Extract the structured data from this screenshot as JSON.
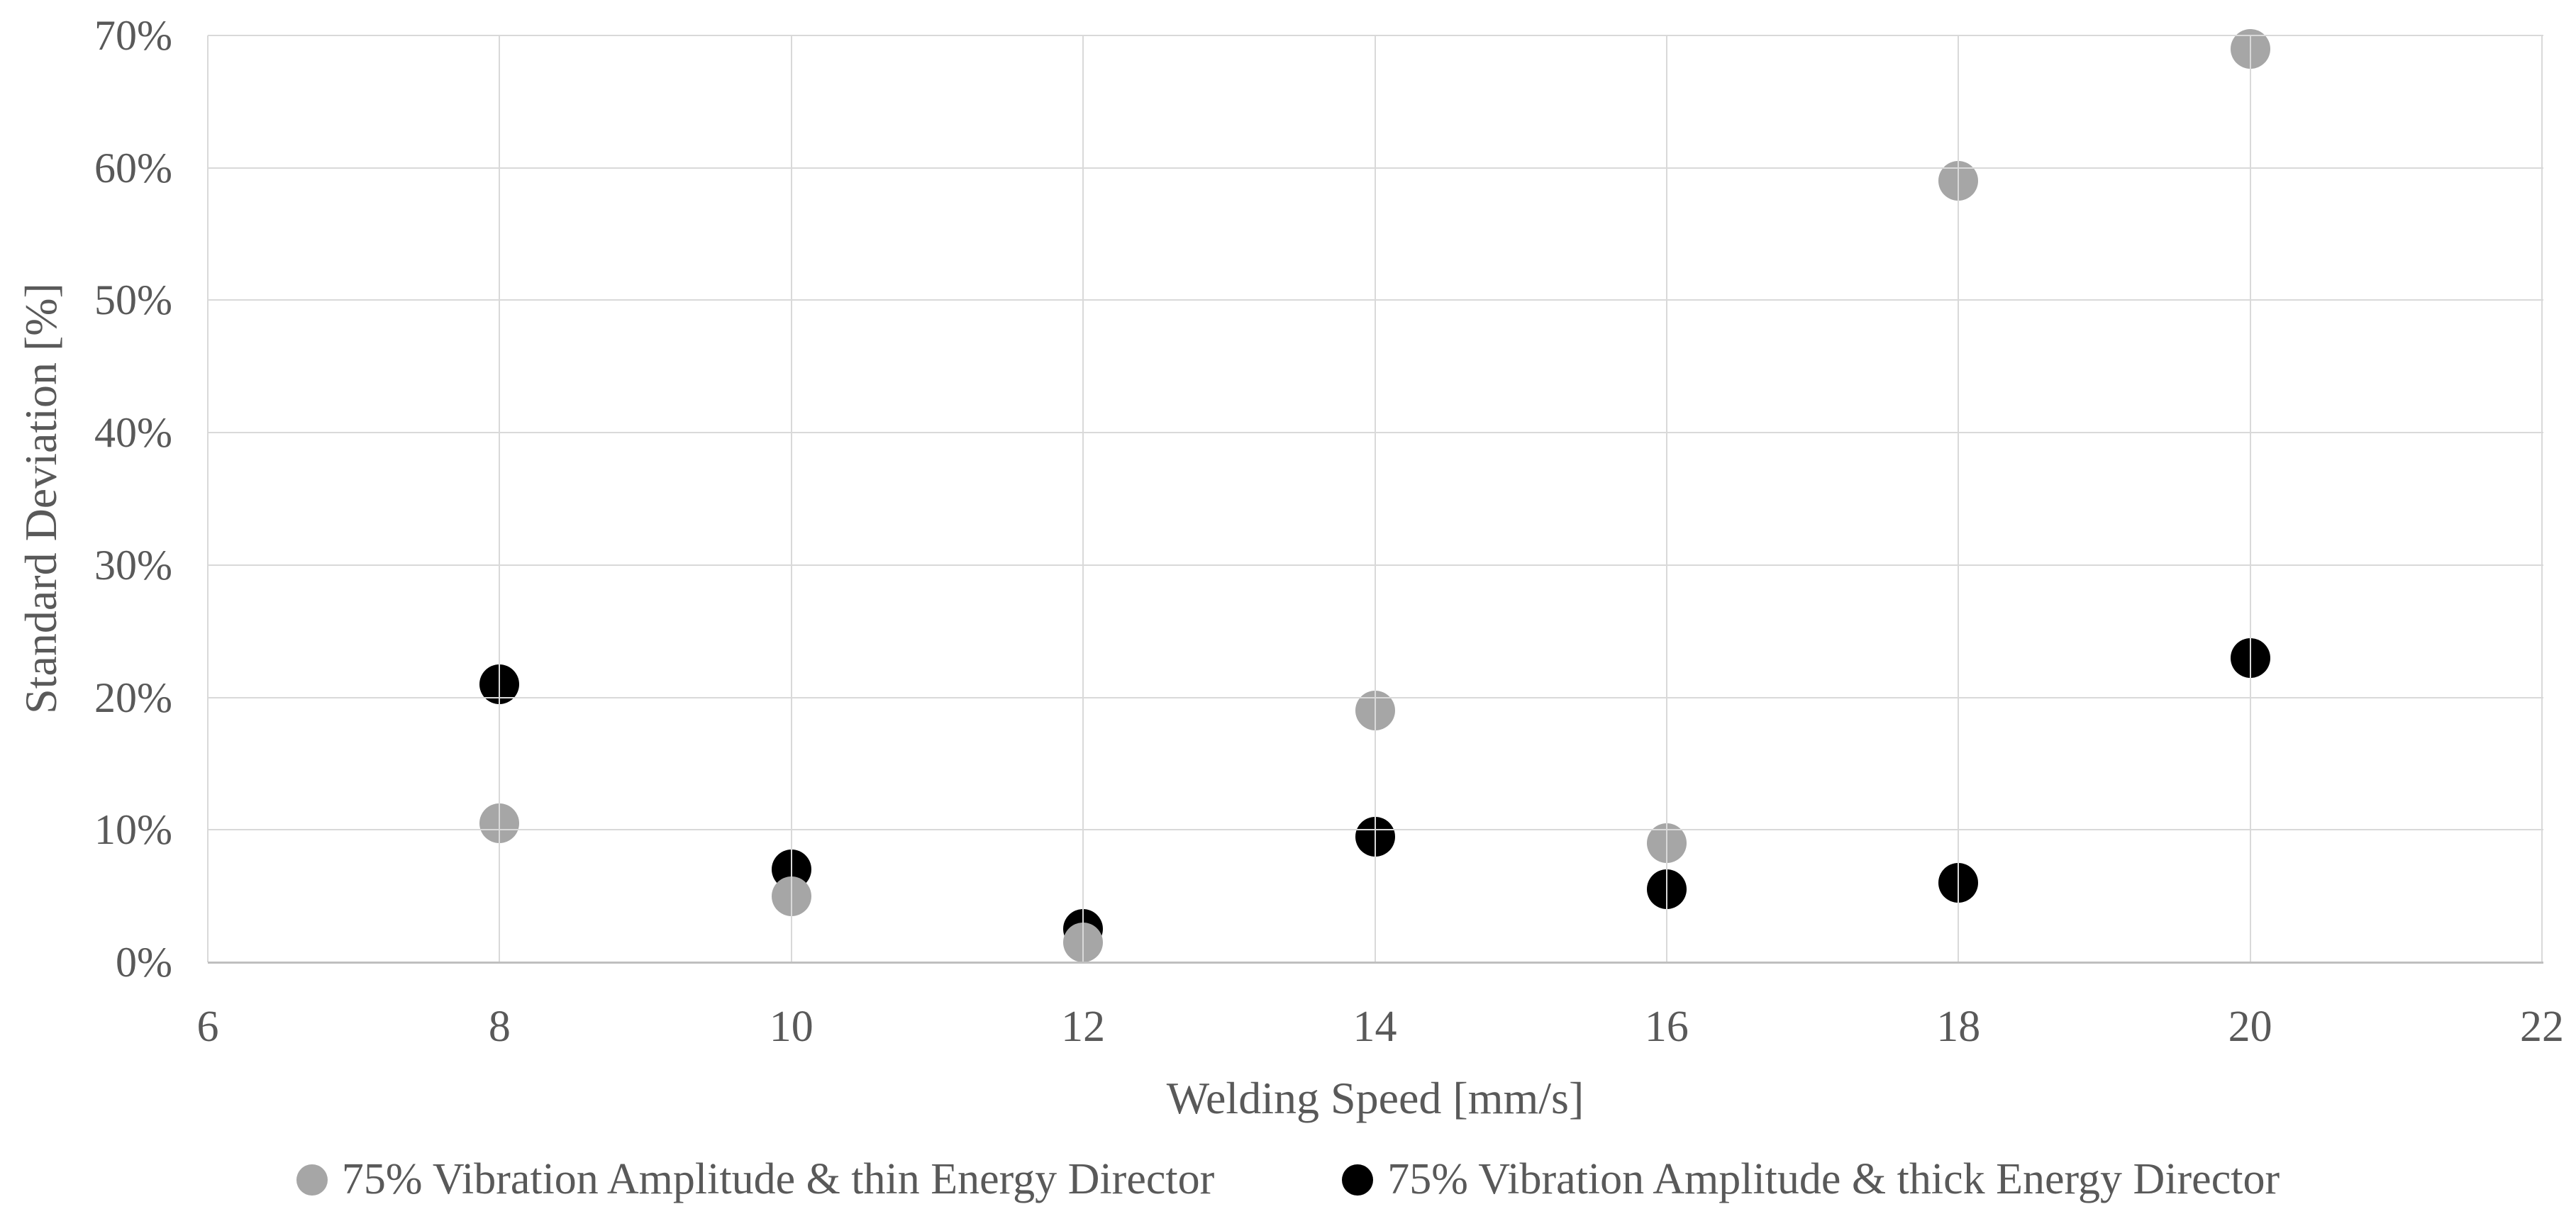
{
  "chart_data": {
    "type": "scatter",
    "title": "",
    "xlabel": "Welding Speed [mm/s]",
    "ylabel": "Standard Deviation [%]",
    "xlim": [
      6,
      22
    ],
    "ylim": [
      0,
      70
    ],
    "x_ticks": [
      6,
      8,
      10,
      12,
      14,
      16,
      18,
      20,
      22
    ],
    "y_ticks": [
      0,
      10,
      20,
      30,
      40,
      50,
      60,
      70
    ],
    "y_tick_labels": [
      "0%",
      "10%",
      "20%",
      "30%",
      "40%",
      "50%",
      "60%",
      "70%"
    ],
    "grid": true,
    "legend_position": "bottom",
    "series": [
      {
        "name": "75% Vibration Amplitude & thin Energy Director",
        "color": "#a6a6a6",
        "x": [
          8,
          10,
          12,
          14,
          16,
          18,
          20
        ],
        "y": [
          10.5,
          5,
          1.5,
          19,
          9,
          59,
          69
        ]
      },
      {
        "name": "75% Vibration Amplitude & thick Energy Director",
        "color": "#000000",
        "x": [
          8,
          10,
          12,
          14,
          16,
          18,
          20
        ],
        "y": [
          21,
          7,
          2.5,
          9.5,
          5.5,
          6,
          23
        ]
      }
    ]
  },
  "colors": {
    "gridline": "#d9d9d9",
    "axis_line": "#bfbfbf",
    "text": "#595959",
    "series_thin": "#a6a6a6",
    "series_thick": "#000000",
    "background": "#ffffff"
  }
}
